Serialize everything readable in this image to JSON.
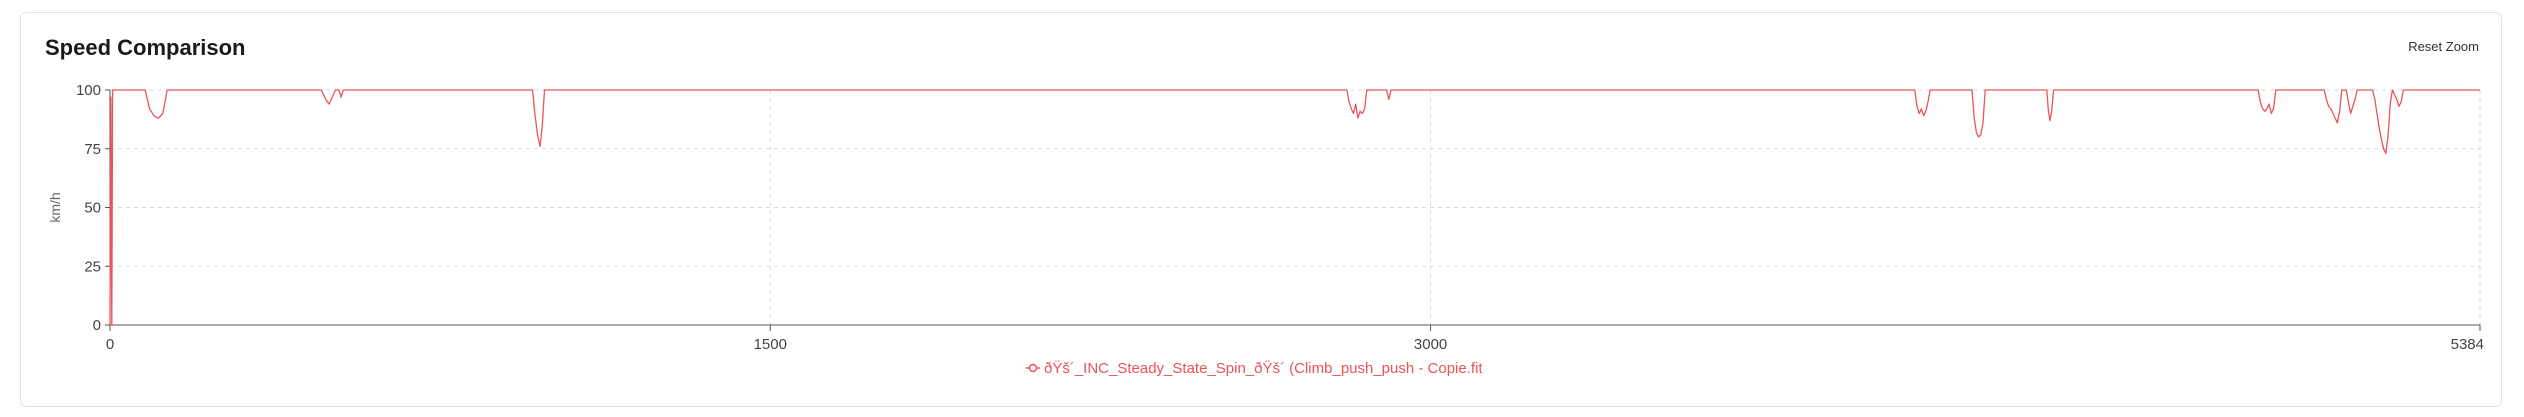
{
  "header": {
    "title": "Speed Comparison",
    "reset_label": "Reset Zoom"
  },
  "colors": {
    "series": "#e8545a",
    "grid": "#d9d9d9",
    "axis": "#555555"
  },
  "chart_data": {
    "type": "line",
    "title": "Speed Comparison",
    "xlabel": "",
    "ylabel": "km/h",
    "xlim": [
      0,
      5384
    ],
    "ylim": [
      0,
      100
    ],
    "x_ticks": [
      "0",
      "1500",
      "3000",
      "5384"
    ],
    "y_ticks": [
      "0",
      "25",
      "50",
      "75",
      "100"
    ],
    "grid": true,
    "legend_position": "bottom",
    "series": [
      {
        "name": "ðŸš´_INC_Steady_State_Spin_ðŸš´ (Climb_push_push - Copie.fit",
        "points": [
          [
            0,
            0
          ],
          [
            2,
            97
          ],
          [
            4,
            0
          ],
          [
            6,
            100
          ],
          [
            10,
            100
          ],
          [
            80,
            100
          ],
          [
            90,
            92
          ],
          [
            100,
            89
          ],
          [
            110,
            88
          ],
          [
            120,
            90
          ],
          [
            130,
            100
          ],
          [
            480,
            100
          ],
          [
            490,
            96
          ],
          [
            498,
            94
          ],
          [
            505,
            97
          ],
          [
            512,
            100
          ],
          [
            520,
            100
          ],
          [
            525,
            97
          ],
          [
            530,
            100
          ],
          [
            960,
            100
          ],
          [
            965,
            90
          ],
          [
            972,
            80
          ],
          [
            977,
            76
          ],
          [
            982,
            85
          ],
          [
            987,
            100
          ],
          [
            2810,
            100
          ],
          [
            2815,
            95
          ],
          [
            2820,
            92
          ],
          [
            2825,
            90
          ],
          [
            2830,
            94
          ],
          [
            2835,
            88
          ],
          [
            2840,
            91
          ],
          [
            2845,
            90
          ],
          [
            2850,
            92
          ],
          [
            2855,
            100
          ],
          [
            2900,
            100
          ],
          [
            2905,
            96
          ],
          [
            2910,
            100
          ],
          [
            4100,
            100
          ],
          [
            4105,
            93
          ],
          [
            4110,
            90
          ],
          [
            4115,
            92
          ],
          [
            4120,
            89
          ],
          [
            4125,
            91
          ],
          [
            4130,
            95
          ],
          [
            4135,
            100
          ],
          [
            4230,
            100
          ],
          [
            4235,
            88
          ],
          [
            4240,
            82
          ],
          [
            4245,
            80
          ],
          [
            4250,
            81
          ],
          [
            4255,
            86
          ],
          [
            4260,
            100
          ],
          [
            4400,
            100
          ],
          [
            4403,
            92
          ],
          [
            4407,
            87
          ],
          [
            4411,
            91
          ],
          [
            4415,
            100
          ],
          [
            4880,
            100
          ],
          [
            4885,
            95
          ],
          [
            4890,
            92
          ],
          [
            4895,
            91
          ],
          [
            4900,
            92
          ],
          [
            4905,
            94
          ],
          [
            4910,
            90
          ],
          [
            4915,
            92
          ],
          [
            4920,
            100
          ],
          [
            5030,
            100
          ],
          [
            5035,
            96
          ],
          [
            5040,
            93
          ],
          [
            5045,
            92
          ],
          [
            5050,
            90
          ],
          [
            5055,
            88
          ],
          [
            5060,
            86
          ],
          [
            5065,
            91
          ],
          [
            5070,
            100
          ],
          [
            5080,
            100
          ],
          [
            5085,
            95
          ],
          [
            5090,
            90
          ],
          [
            5095,
            93
          ],
          [
            5100,
            96
          ],
          [
            5105,
            100
          ],
          [
            5140,
            100
          ],
          [
            5145,
            96
          ],
          [
            5150,
            90
          ],
          [
            5155,
            84
          ],
          [
            5160,
            79
          ],
          [
            5165,
            75
          ],
          [
            5170,
            73
          ],
          [
            5175,
            80
          ],
          [
            5180,
            94
          ],
          [
            5185,
            100
          ],
          [
            5195,
            96
          ],
          [
            5200,
            93
          ],
          [
            5205,
            95
          ],
          [
            5210,
            100
          ],
          [
            5384,
            100
          ]
        ]
      }
    ]
  }
}
